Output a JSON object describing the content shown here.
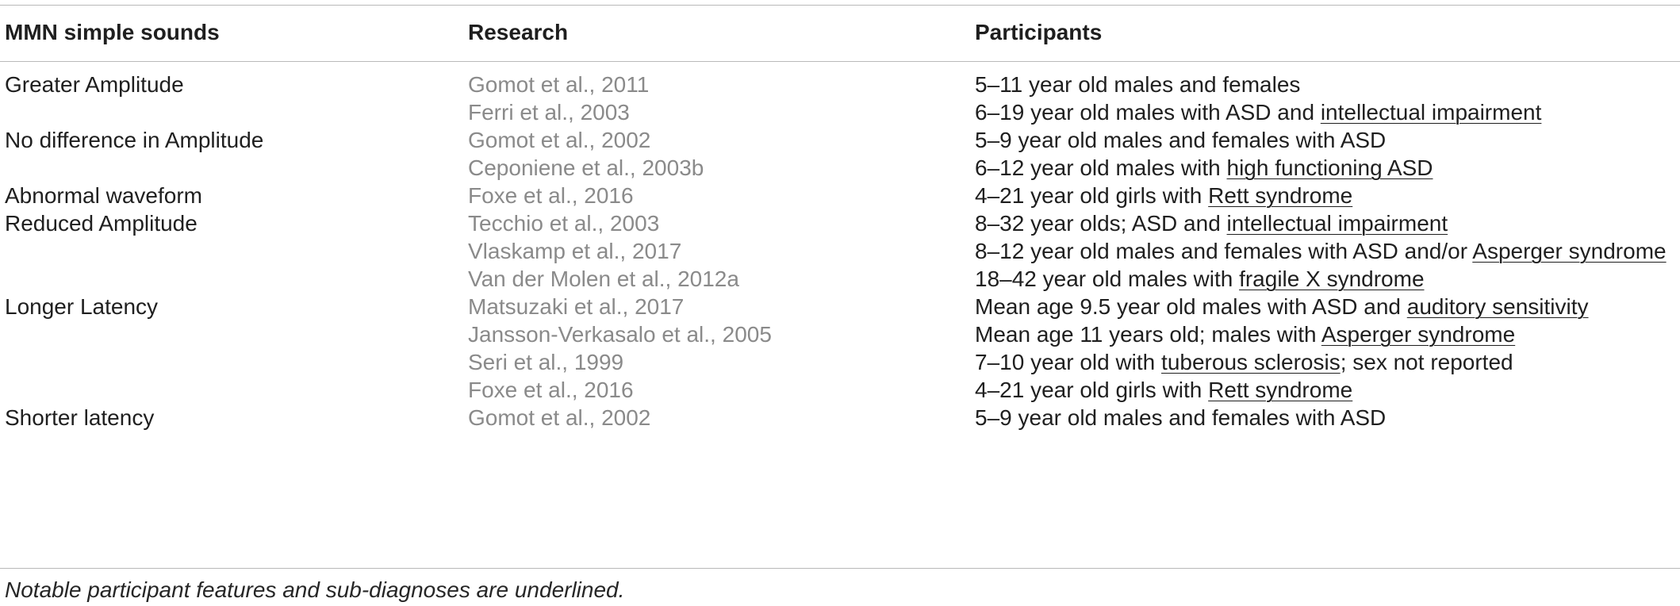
{
  "table": {
    "headers": {
      "col1": "MMN simple sounds",
      "col2": "Research",
      "col3": "Participants"
    },
    "rows": [
      {
        "category": "Greater Amplitude",
        "research": "Gomot et al., 2011",
        "p_plain": "5–11 year old males and females",
        "p_ul": "",
        "p_after": ""
      },
      {
        "category": "",
        "research": "Ferri et al., 2003",
        "p_plain": "6–19 year old males with ASD and ",
        "p_ul": "intellectual impairment",
        "p_after": ""
      },
      {
        "category": "No difference in Amplitude",
        "research": "Gomot et al., 2002",
        "p_plain": "5–9 year old males and females with ASD",
        "p_ul": "",
        "p_after": ""
      },
      {
        "category": "",
        "research": "Ceponiene et al., 2003b",
        "p_plain": "6–12 year old males with ",
        "p_ul": "high functioning ASD",
        "p_after": ""
      },
      {
        "category": "Abnormal waveform",
        "research": "Foxe et al., 2016",
        "p_plain": "4–21 year old girls with ",
        "p_ul": "Rett syndrome",
        "p_after": ""
      },
      {
        "category": "Reduced Amplitude",
        "research": "Tecchio et al., 2003",
        "p_plain": "8–32 year olds; ASD and ",
        "p_ul": "intellectual impairment",
        "p_after": ""
      },
      {
        "category": "",
        "research": "Vlaskamp et al., 2017",
        "p_plain": "8–12 year old males and females with ASD and/or ",
        "p_ul": "Asperger syndrome",
        "p_after": ""
      },
      {
        "category": "",
        "research": "Van der Molen et al., 2012a",
        "p_plain": "18–42 year old males with ",
        "p_ul": "fragile X syndrome",
        "p_after": ""
      },
      {
        "category": "Longer Latency",
        "research": "Matsuzaki et al., 2017",
        "p_plain": "Mean age 9.5 year old males with ASD and ",
        "p_ul": "auditory sensitivity",
        "p_after": ""
      },
      {
        "category": "",
        "research": "Jansson-Verkasalo et al., 2005",
        "p_plain": "Mean age 11 years old; males with ",
        "p_ul": "Asperger syndrome",
        "p_after": ""
      },
      {
        "category": "",
        "research": "Seri et al., 1999",
        "p_plain": "7–10 year old with ",
        "p_ul": "tuberous sclerosis",
        "p_after": "; sex not reported"
      },
      {
        "category": "",
        "research": "Foxe et al., 2016",
        "p_plain": "4–21 year old girls with ",
        "p_ul": "Rett syndrome",
        "p_after": ""
      },
      {
        "category": "Shorter latency",
        "research": "Gomot et al., 2002",
        "p_plain": "5–9 year old males and females with ASD",
        "p_ul": "",
        "p_after": ""
      }
    ]
  },
  "footnote": "Notable participant features and sub-diagnoses are underlined."
}
